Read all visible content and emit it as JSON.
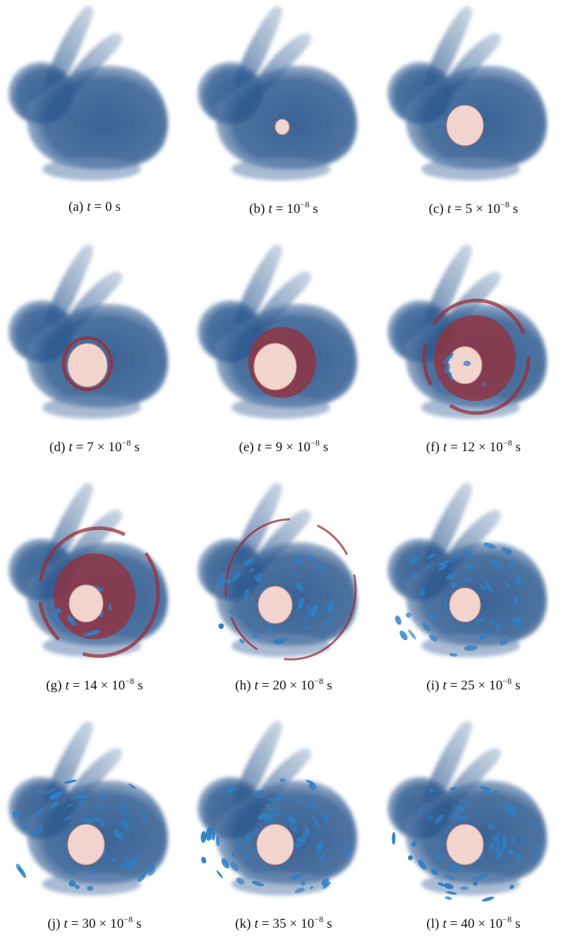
{
  "colors": {
    "bunny_body": "#2f5a8f",
    "bunny_edge": "#6e8db5",
    "hot_core": "#f2d4cf",
    "red_front": "#9a2d38",
    "blue_cavity": "#2f7fc4"
  },
  "panels": [
    {
      "label": "(a)",
      "t_value": "0",
      "exponent": "",
      "unit": "s"
    },
    {
      "label": "(b)",
      "t_value": "10",
      "exponent": "−8",
      "unit": "s"
    },
    {
      "label": "(c)",
      "t_value": "5 × 10",
      "exponent": "−8",
      "unit": "s"
    },
    {
      "label": "(d)",
      "t_value": "7 × 10",
      "exponent": "−8",
      "unit": "s"
    },
    {
      "label": "(e)",
      "t_value": "9 × 10",
      "exponent": "−8",
      "unit": "s"
    },
    {
      "label": "(f)",
      "t_value": "12 × 10",
      "exponent": "−8",
      "unit": "s"
    },
    {
      "label": "(g)",
      "t_value": "14 × 10",
      "exponent": "−8",
      "unit": "s"
    },
    {
      "label": "(h)",
      "t_value": "20 × 10",
      "exponent": "−8",
      "unit": "s"
    },
    {
      "label": "(i)",
      "t_value": "25 × 10",
      "exponent": "−8",
      "unit": "s"
    },
    {
      "label": "(j)",
      "t_value": "30 × 10",
      "exponent": "−8",
      "unit": "s"
    },
    {
      "label": "(k)",
      "t_value": "35 × 10",
      "exponent": "−8",
      "unit": "s"
    },
    {
      "label": "(l)",
      "t_value": "40 × 10",
      "exponent": "−8",
      "unit": "s"
    }
  ]
}
